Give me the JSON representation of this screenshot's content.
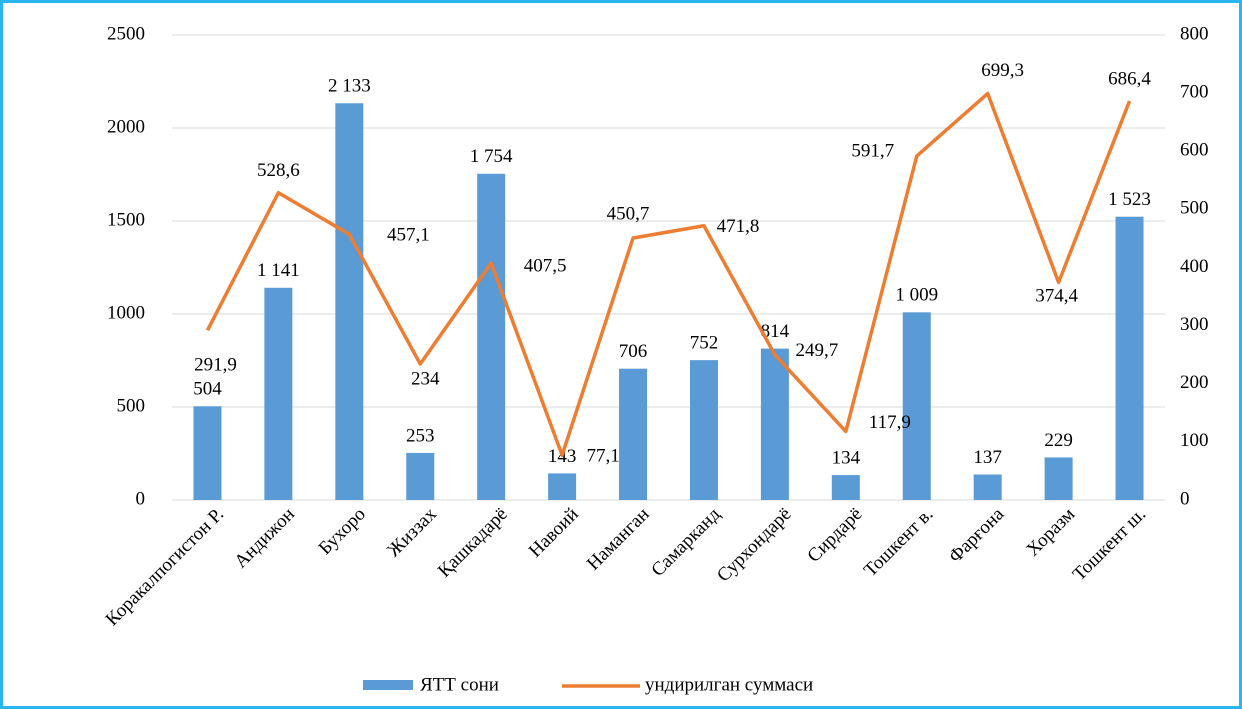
{
  "chart_data": {
    "type": "bar",
    "categories": [
      "Коракалпогистон Р.",
      "Андижон",
      "Бухоро",
      "Жиззах",
      "Қашкадарё",
      "Навоий",
      "Наманган",
      "Самарканд",
      "Сурхондарё",
      "Сирдарё",
      "Тошкент в.",
      "Фарғона",
      "Хоразм",
      "Тошкент ш."
    ],
    "series": [
      {
        "name": "ЯТТ сони",
        "type": "bar",
        "color": "#5b9bd5",
        "axis": "y",
        "values": [
          504,
          1141,
          2133,
          253,
          1754,
          143,
          706,
          752,
          814,
          134,
          1009,
          137,
          229,
          1523
        ],
        "value_labels": [
          "504",
          "1 141",
          "2 133",
          "253",
          "1 754",
          "143",
          "706",
          "752",
          "814",
          "134",
          "1 009",
          "137",
          "229",
          "1 523"
        ]
      },
      {
        "name": "ундирилган суммаси",
        "type": "line",
        "color": "#ed7d31",
        "axis": "y2",
        "values": [
          291.9,
          528.6,
          457.1,
          234,
          407.5,
          77.1,
          450.7,
          471.8,
          249.7,
          117.9,
          591.7,
          699.3,
          374.4,
          686.4
        ],
        "value_labels": [
          "291,9",
          "528,6",
          "457,1",
          "234",
          "407,5",
          "77,1",
          "450,7",
          "471,8",
          "249,7",
          "117,9",
          "591,7",
          "699,3",
          "374,4",
          "686,4"
        ]
      }
    ],
    "ylim": [
      0,
      2500
    ],
    "yticks": [
      0,
      500,
      1000,
      1500,
      2000,
      2500
    ],
    "y2lim": [
      0,
      800
    ],
    "y2ticks": [
      0,
      100,
      200,
      300,
      400,
      500,
      600,
      700,
      800
    ],
    "grid": true,
    "legend": "bottom"
  }
}
